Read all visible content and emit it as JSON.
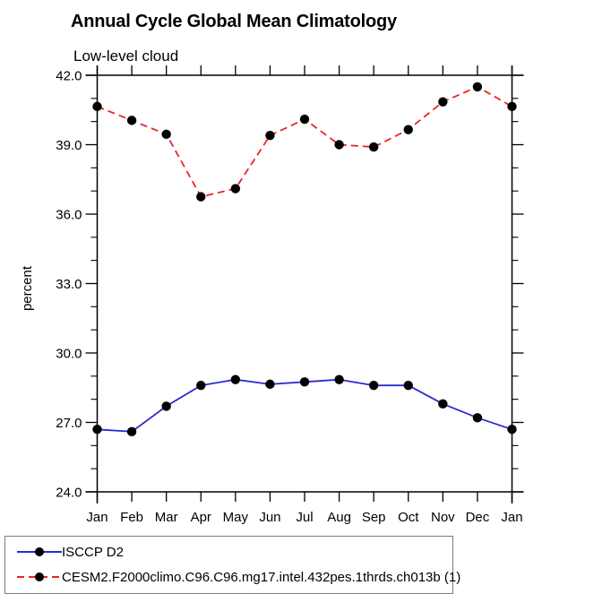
{
  "title": "Annual Cycle Global Mean Climatology",
  "subtitle": "Low-level cloud",
  "ylabel": "percent",
  "legend": {
    "entries": [
      {
        "label": "ISCCP D2",
        "color": "#2b2bd0",
        "style": "solid"
      },
      {
        "label": "CESM2.F2000climo.C96.C96.mg17.intel.432pes.1thrds.ch013b (1)",
        "color": "#ee2222",
        "style": "dashed"
      }
    ]
  },
  "chart_data": {
    "type": "line",
    "title": "Annual Cycle Global Mean Climatology",
    "subtitle": "Low-level cloud",
    "ylabel": "percent",
    "categories": [
      "Jan",
      "Feb",
      "Mar",
      "Apr",
      "May",
      "Jun",
      "Jul",
      "Aug",
      "Sep",
      "Oct",
      "Nov",
      "Dec",
      "Jan"
    ],
    "series": [
      {
        "name": "ISCCP D2",
        "color": "#2b2bd0",
        "line_style": "solid",
        "marker": "filled-circle",
        "values": [
          26.7,
          26.6,
          27.7,
          28.6,
          28.85,
          28.65,
          28.75,
          28.85,
          28.6,
          28.6,
          27.8,
          27.2,
          26.7
        ]
      },
      {
        "name": "CESM2.F2000climo.C96.C96.mg17.intel.432pes.1thrds.ch013b (1)",
        "color": "#ee2222",
        "line_style": "dashed",
        "marker": "filled-circle",
        "values": [
          40.65,
          40.05,
          39.45,
          36.75,
          37.1,
          39.4,
          40.1,
          39.0,
          38.9,
          39.65,
          40.85,
          41.5,
          40.65
        ]
      }
    ],
    "ylim": [
      24.0,
      42.0
    ],
    "ytick_major": [
      24.0,
      27.0,
      30.0,
      33.0,
      36.0,
      39.0,
      42.0
    ],
    "ytick_labels": [
      "24.0",
      "27.0",
      "30.0",
      "33.0",
      "36.0",
      "39.0",
      "42.0"
    ],
    "ytick_minor_step": 1.0,
    "grid": false,
    "legend_position": "bottom-left",
    "marker_color": "#000000",
    "axis_color": "#000000"
  }
}
